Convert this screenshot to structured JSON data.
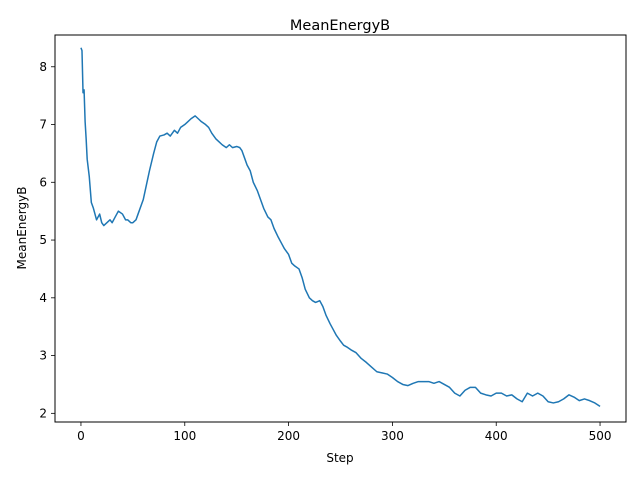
{
  "chart_data": {
    "type": "line",
    "title": "MeanEnergyB",
    "xlabel": "Step",
    "ylabel": "MeanEnergyB",
    "xlim": [
      -25,
      525
    ],
    "ylim": [
      1.85,
      8.55
    ],
    "xticks": [
      0,
      100,
      200,
      300,
      400,
      500
    ],
    "yticks": [
      2,
      3,
      4,
      5,
      6,
      7,
      8
    ],
    "grid": false,
    "legend": "none",
    "series": [
      {
        "color": "#1f77b4",
        "x": [
          0,
          1,
          2,
          3,
          4,
          5,
          6,
          8,
          10,
          12,
          15,
          18,
          20,
          22,
          25,
          28,
          30,
          33,
          36,
          40,
          43,
          45,
          48,
          50,
          53,
          55,
          58,
          60,
          63,
          66,
          70,
          73,
          76,
          80,
          83,
          86,
          90,
          93,
          96,
          100,
          103,
          106,
          110,
          113,
          116,
          120,
          123,
          126,
          130,
          133,
          136,
          140,
          143,
          146,
          150,
          153,
          155,
          158,
          160,
          163,
          166,
          170,
          173,
          176,
          180,
          183,
          186,
          190,
          193,
          196,
          200,
          203,
          206,
          210,
          213,
          216,
          220,
          223,
          226,
          230,
          233,
          236,
          240,
          243,
          246,
          250,
          253,
          256,
          260,
          265,
          270,
          275,
          280,
          285,
          290,
          295,
          300,
          305,
          310,
          315,
          320,
          325,
          330,
          335,
          340,
          345,
          350,
          355,
          360,
          365,
          370,
          375,
          380,
          385,
          390,
          395,
          400,
          405,
          410,
          415,
          420,
          425,
          430,
          435,
          440,
          445,
          450,
          455,
          460,
          465,
          470,
          475,
          480,
          485,
          490,
          495,
          500
        ],
        "y": [
          8.33,
          8.28,
          7.55,
          7.6,
          7.05,
          6.75,
          6.4,
          6.1,
          5.65,
          5.55,
          5.35,
          5.45,
          5.3,
          5.25,
          5.3,
          5.35,
          5.3,
          5.4,
          5.5,
          5.45,
          5.35,
          5.35,
          5.3,
          5.3,
          5.35,
          5.45,
          5.6,
          5.7,
          5.95,
          6.2,
          6.5,
          6.7,
          6.8,
          6.82,
          6.85,
          6.8,
          6.9,
          6.85,
          6.95,
          7.0,
          7.05,
          7.1,
          7.15,
          7.1,
          7.05,
          7.0,
          6.95,
          6.85,
          6.75,
          6.7,
          6.65,
          6.6,
          6.65,
          6.6,
          6.62,
          6.6,
          6.55,
          6.4,
          6.3,
          6.2,
          6.0,
          5.85,
          5.7,
          5.55,
          5.4,
          5.35,
          5.2,
          5.05,
          4.95,
          4.85,
          4.75,
          4.6,
          4.55,
          4.5,
          4.35,
          4.15,
          4.0,
          3.95,
          3.92,
          3.95,
          3.85,
          3.7,
          3.55,
          3.45,
          3.35,
          3.25,
          3.18,
          3.15,
          3.1,
          3.05,
          2.95,
          2.88,
          2.8,
          2.72,
          2.7,
          2.68,
          2.62,
          2.55,
          2.5,
          2.48,
          2.52,
          2.55,
          2.55,
          2.55,
          2.52,
          2.55,
          2.5,
          2.45,
          2.35,
          2.3,
          2.4,
          2.45,
          2.45,
          2.35,
          2.32,
          2.3,
          2.35,
          2.35,
          2.3,
          2.32,
          2.25,
          2.2,
          2.35,
          2.3,
          2.35,
          2.3,
          2.2,
          2.18,
          2.2,
          2.25,
          2.32,
          2.28,
          2.22,
          2.25,
          2.22,
          2.18,
          2.12
        ]
      }
    ]
  }
}
